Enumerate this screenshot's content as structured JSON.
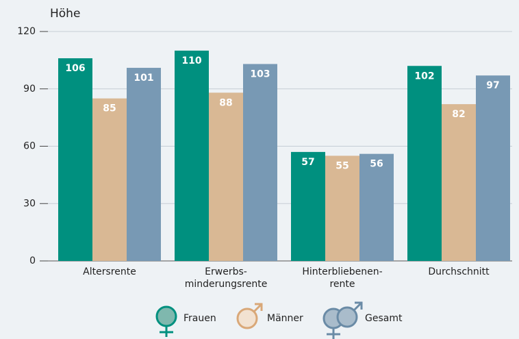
{
  "chart_data": {
    "type": "bar",
    "y_label": "Höhe",
    "categories": [
      "Altersrente",
      "Erwerbs-\nminderungsrente",
      "Hinterbliebenen-\nrente",
      "Durchschnitt"
    ],
    "series": [
      {
        "name": "Frauen",
        "color": "#00907f",
        "values": [
          106,
          110,
          57,
          102
        ]
      },
      {
        "name": "Männer",
        "color": "#d9b894",
        "values": [
          85,
          88,
          55,
          82
        ]
      },
      {
        "name": "Gesamt",
        "color": "#7899b4",
        "values": [
          101,
          103,
          56,
          97
        ]
      }
    ],
    "ylim": [
      0,
      120
    ],
    "yticks": [
      0,
      30,
      60,
      90,
      120
    ],
    "grid": true,
    "legend": "bottom"
  }
}
